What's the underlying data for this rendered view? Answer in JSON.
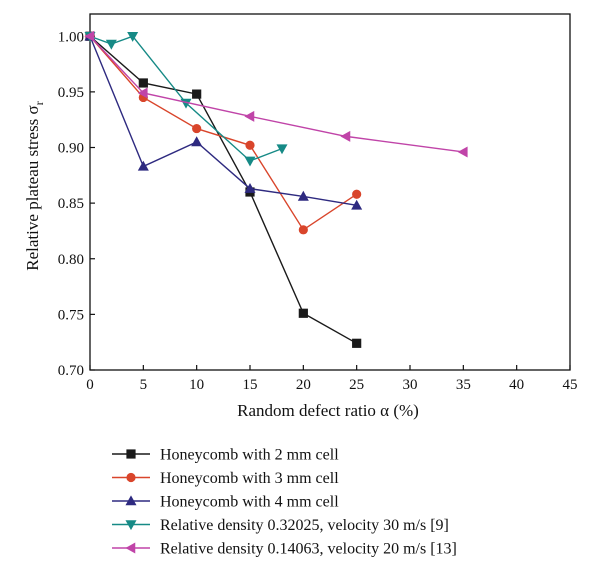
{
  "chart_data": {
    "type": "line",
    "xlabel": "Random defect ratio α (%)",
    "ylabel": "Relative plateau stress σ",
    "ylabel_sub": "r",
    "xlim": [
      0,
      45
    ],
    "ylim": [
      0.7,
      1.02
    ],
    "xticks": [
      "0",
      "5",
      "10",
      "15",
      "20",
      "25",
      "30",
      "35",
      "40",
      "45"
    ],
    "xtick_values": [
      0,
      5,
      10,
      15,
      20,
      25,
      30,
      35,
      40,
      45
    ],
    "yticks": [
      "0.70",
      "0.75",
      "0.80",
      "0.85",
      "0.90",
      "0.95",
      "1.00"
    ],
    "ytick_values": [
      0.7,
      0.75,
      0.8,
      0.85,
      0.9,
      0.95,
      1.0
    ],
    "grid": false,
    "legend_position": "below",
    "series": [
      {
        "name": "Honeycomb with 2 mm cell",
        "color": "#1a1a1a",
        "marker": "square",
        "x": [
          0,
          5,
          10,
          15,
          20,
          25
        ],
        "y": [
          1.0,
          0.958,
          0.948,
          0.86,
          0.751,
          0.724
        ]
      },
      {
        "name": "Honeycomb with 3 mm cell",
        "color": "#d9452b",
        "marker": "circle",
        "x": [
          0,
          5,
          10,
          15,
          20,
          25
        ],
        "y": [
          1.0,
          0.945,
          0.917,
          0.902,
          0.826,
          0.858
        ]
      },
      {
        "name": "Honeycomb with 4 mm cell",
        "color": "#2e2a80",
        "marker": "triangle-up",
        "x": [
          0,
          5,
          10,
          15,
          20,
          25
        ],
        "y": [
          1.0,
          0.883,
          0.905,
          0.863,
          0.856,
          0.848
        ]
      },
      {
        "name": "Relative density 0.32025, velocity 30 m/s [9]",
        "color": "#168a86",
        "marker": "triangle-down",
        "x": [
          0,
          2,
          4,
          9,
          15,
          18
        ],
        "y": [
          1.0,
          0.993,
          1.0,
          0.94,
          0.888,
          0.899
        ]
      },
      {
        "name": "Relative density 0.14063, velocity 20 m/s [13]",
        "color": "#c044a8",
        "marker": "triangle-left",
        "x": [
          0,
          5,
          15,
          24,
          35
        ],
        "y": [
          1.0,
          0.949,
          0.928,
          0.91,
          0.896
        ]
      }
    ]
  }
}
